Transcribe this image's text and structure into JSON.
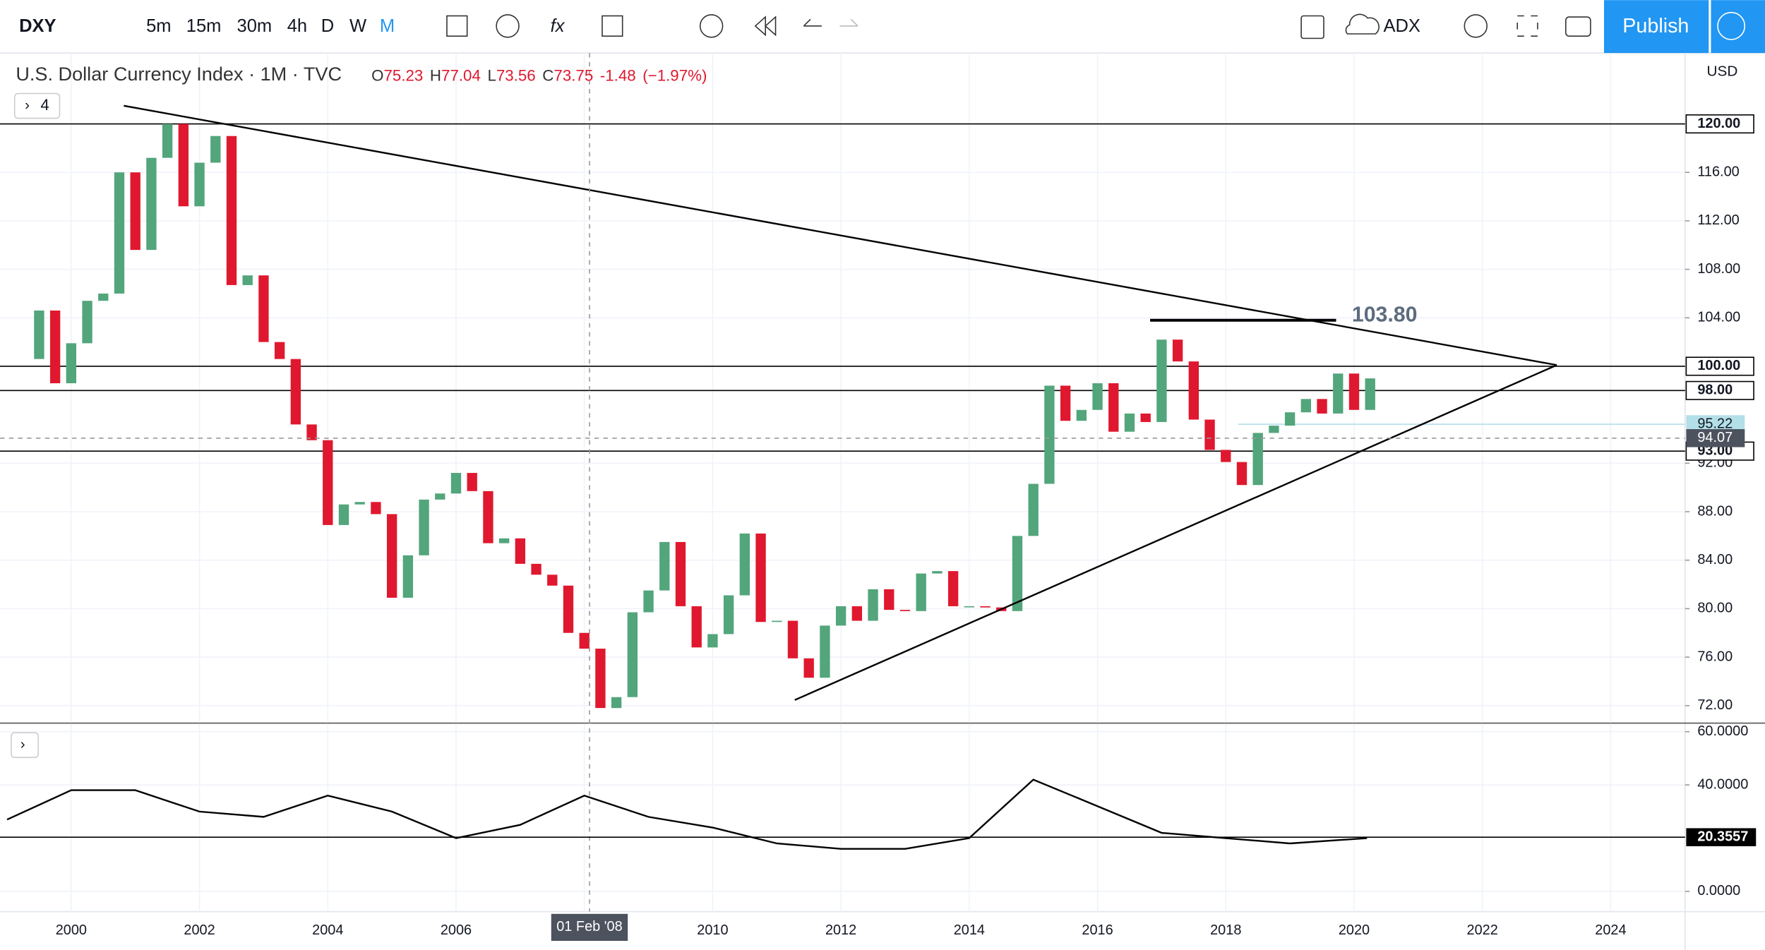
{
  "toolbar": {
    "symbol": "DXY",
    "intervals": [
      "5m",
      "15m",
      "30m",
      "4h",
      "D",
      "W",
      "M"
    ],
    "active_interval": 6,
    "indicator": "ADX",
    "publish": "Publish"
  },
  "currency": "USD",
  "collapsed_count": "4",
  "chart_data": [
    {
      "type": "candlestick",
      "title": "U.S. Dollar Currency Index · 1M · TVC",
      "ohlc": [
        {
          "key": "O",
          "value": 75.23
        },
        {
          "key": "H",
          "value": 77.04
        },
        {
          "key": "L",
          "value": 73.56
        },
        {
          "key": "C",
          "value": 73.75
        }
      ],
      "change": -1.48,
      "change_pct": {
        "value": -1.97,
        "label": "(−1.97%)"
      },
      "up_color": "#53a57c",
      "down_color": "#e0182f",
      "x": [
        1999.25,
        1999.5,
        1999.75,
        2000.0,
        2000.25,
        2000.5,
        2000.75,
        2001.0,
        2001.25,
        2001.5,
        2001.75,
        2002.0,
        2002.25,
        2002.5,
        2002.75,
        2003.0,
        2003.25,
        2003.5,
        2003.75,
        2004.0,
        2004.25,
        2004.5,
        2004.75,
        2005.0,
        2005.25,
        2005.5,
        2005.75,
        2006.0,
        2006.25,
        2006.5,
        2006.75,
        2007.0,
        2007.25,
        2007.5,
        2007.75,
        2008.0,
        2008.25,
        2008.5,
        2008.75,
        2009.0,
        2009.25,
        2009.5,
        2009.75,
        2010.0,
        2010.25,
        2010.5,
        2010.75,
        2011.0,
        2011.25,
        2011.5,
        2011.75,
        2012.0,
        2012.25,
        2012.5,
        2012.75,
        2013.0,
        2013.25,
        2013.5,
        2013.75,
        2014.0,
        2014.25,
        2014.5,
        2014.75,
        2015.0,
        2015.25,
        2015.5,
        2015.75,
        2016.0,
        2016.25,
        2016.5,
        2016.75,
        2017.0,
        2017.25,
        2017.5,
        2017.75,
        2018.0,
        2018.25,
        2018.5,
        2018.75,
        2019.0,
        2019.25,
        2019.5,
        2019.75,
        2020.0,
        2020.25
      ],
      "series": [
        {
          "values": [
            100.6,
            104.6,
            98.6,
            101.9,
            105.4,
            106.0,
            116.0,
            109.6,
            117.2,
            120.0,
            113.2,
            116.8,
            119.0,
            106.7,
            107.5,
            102.0,
            100.6,
            95.2,
            93.9,
            86.9,
            88.6,
            88.8,
            87.8,
            80.9,
            84.4,
            89.0,
            89.5,
            91.2,
            89.7,
            85.4,
            85.8,
            83.7,
            82.8,
            81.9,
            78.0,
            76.7,
            71.8,
            72.7,
            79.7,
            81.5,
            85.5,
            80.2,
            76.8,
            77.9,
            81.1,
            86.2,
            78.9,
            79.0,
            75.9,
            74.3,
            78.6,
            80.2,
            79.0,
            81.6,
            79.9,
            79.8,
            82.9,
            83.1,
            80.2,
            80.2,
            80.1,
            79.8,
            86.0,
            90.3,
            98.4,
            95.5,
            96.4,
            98.6,
            94.6,
            96.1,
            95.4,
            102.2,
            100.4,
            95.6,
            93.1,
            92.1,
            90.2,
            94.5,
            95.1,
            96.2,
            97.3,
            96.1,
            99.4,
            96.4,
            99.0
          ]
        }
      ],
      "xlim": [
        1998.89,
        2025.16
      ],
      "xticks": [
        2000,
        2002,
        2004,
        2006,
        2008,
        2010,
        2012,
        2014,
        2016,
        2018,
        2020,
        2022,
        2024
      ],
      "ylim": [
        70.6,
        125.85
      ],
      "yticks": [
        {
          "value": 72,
          "label": "72.00"
        },
        {
          "value": 76,
          "label": "76.00"
        },
        {
          "value": 80,
          "label": "80.00"
        },
        {
          "value": 84,
          "label": "84.00"
        },
        {
          "value": 88,
          "label": "88.00"
        },
        {
          "value": 92,
          "label": "92.00"
        },
        {
          "value": 104,
          "label": "104.00"
        },
        {
          "value": 108,
          "label": "108.00"
        },
        {
          "value": 112,
          "label": "112.00"
        },
        {
          "value": 116,
          "label": "116.00"
        }
      ],
      "price_lines": [
        {
          "value": 120,
          "label": "120.00"
        },
        {
          "value": 100,
          "label": "100.00"
        },
        {
          "value": 98,
          "label": "98.00"
        },
        {
          "value": 93,
          "label": "93.00"
        }
      ],
      "price_markers": [
        {
          "value": 95.22,
          "label": "95.22",
          "color": "#b2dfe8"
        }
      ],
      "trendlines": [
        {
          "x": [
            2000.82,
            2023.16
          ],
          "y": [
            121.5,
            100.1
          ]
        },
        {
          "x": [
            2011.28,
            2023.16
          ],
          "y": [
            72.46,
            100.1
          ]
        }
      ],
      "level": {
        "value": 103.8,
        "label": "103.80",
        "x": [
          2016.82,
          2019.72
        ]
      },
      "crosshair": {
        "x": {
          "value": 2008.08,
          "label": "01 Feb '08"
        },
        "y": {
          "value": 94.07,
          "label": "94.07"
        }
      },
      "grid": true
    },
    {
      "type": "line",
      "color": "#000000",
      "x": [
        1999,
        2000,
        2001,
        2002,
        2003,
        2004,
        2005,
        2006,
        2007,
        2008,
        2009,
        2010,
        2011,
        2012,
        2013,
        2014,
        2015,
        2016,
        2017,
        2018,
        2019,
        2020.2
      ],
      "values": [
        27,
        38,
        38,
        30,
        28,
        36,
        30,
        20,
        25,
        36,
        28,
        24,
        18,
        16,
        16,
        20,
        42,
        32,
        22,
        20,
        18,
        20
      ],
      "ylim": [
        -7.6,
        63
      ],
      "yticks": [
        {
          "value": 0,
          "label": "0.0000"
        },
        {
          "value": 40,
          "label": "40.0000"
        },
        {
          "value": 60,
          "label": "60.0000"
        }
      ],
      "marker": {
        "value": 20.3557,
        "label": "20.3557"
      }
    }
  ]
}
